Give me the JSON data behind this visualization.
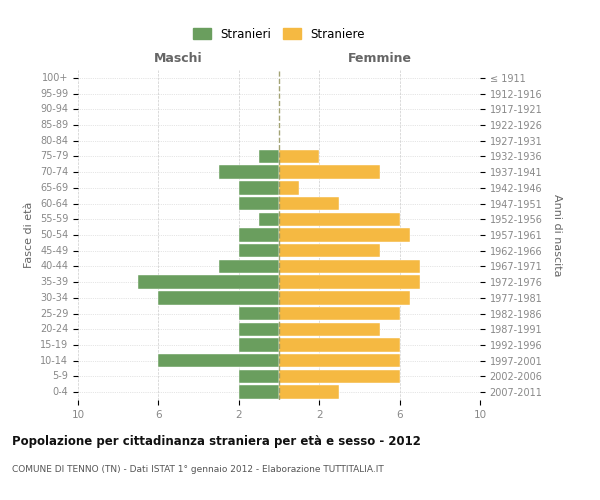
{
  "age_groups": [
    "0-4",
    "5-9",
    "10-14",
    "15-19",
    "20-24",
    "25-29",
    "30-34",
    "35-39",
    "40-44",
    "45-49",
    "50-54",
    "55-59",
    "60-64",
    "65-69",
    "70-74",
    "75-79",
    "80-84",
    "85-89",
    "90-94",
    "95-99",
    "100+"
  ],
  "birth_years": [
    "2007-2011",
    "2002-2006",
    "1997-2001",
    "1992-1996",
    "1987-1991",
    "1982-1986",
    "1977-1981",
    "1972-1976",
    "1967-1971",
    "1962-1966",
    "1957-1961",
    "1952-1956",
    "1947-1951",
    "1942-1946",
    "1937-1941",
    "1932-1936",
    "1927-1931",
    "1922-1926",
    "1917-1921",
    "1912-1916",
    "≤ 1911"
  ],
  "maschi": [
    2,
    2,
    6,
    2,
    2,
    2,
    6,
    7,
    3,
    2,
    2,
    1,
    2,
    2,
    3,
    1,
    0,
    0,
    0,
    0,
    0
  ],
  "femmine": [
    3,
    6,
    6,
    6,
    5,
    6,
    6.5,
    7,
    7,
    5,
    6.5,
    6,
    3,
    1,
    5,
    2,
    0,
    0,
    0,
    0,
    0
  ],
  "male_color": "#6a9e5e",
  "female_color": "#f5b942",
  "title": "Popolazione per cittadinanza straniera per età e sesso - 2012",
  "subtitle": "COMUNE DI TENNO (TN) - Dati ISTAT 1° gennaio 2012 - Elaborazione TUTTITALIA.IT",
  "legend_male": "Stranieri",
  "legend_female": "Straniere",
  "header_left": "Maschi",
  "header_right": "Femmine",
  "ylabel_left": "Fasce di età",
  "ylabel_right": "Anni di nascita",
  "xlim": 10,
  "xticks": [
    -10,
    -6,
    -2,
    2,
    6,
    10
  ],
  "bg_color": "#ffffff",
  "grid_color": "#cccccc",
  "tick_color": "#888888",
  "label_color": "#666666",
  "center_line_color": "#999966"
}
